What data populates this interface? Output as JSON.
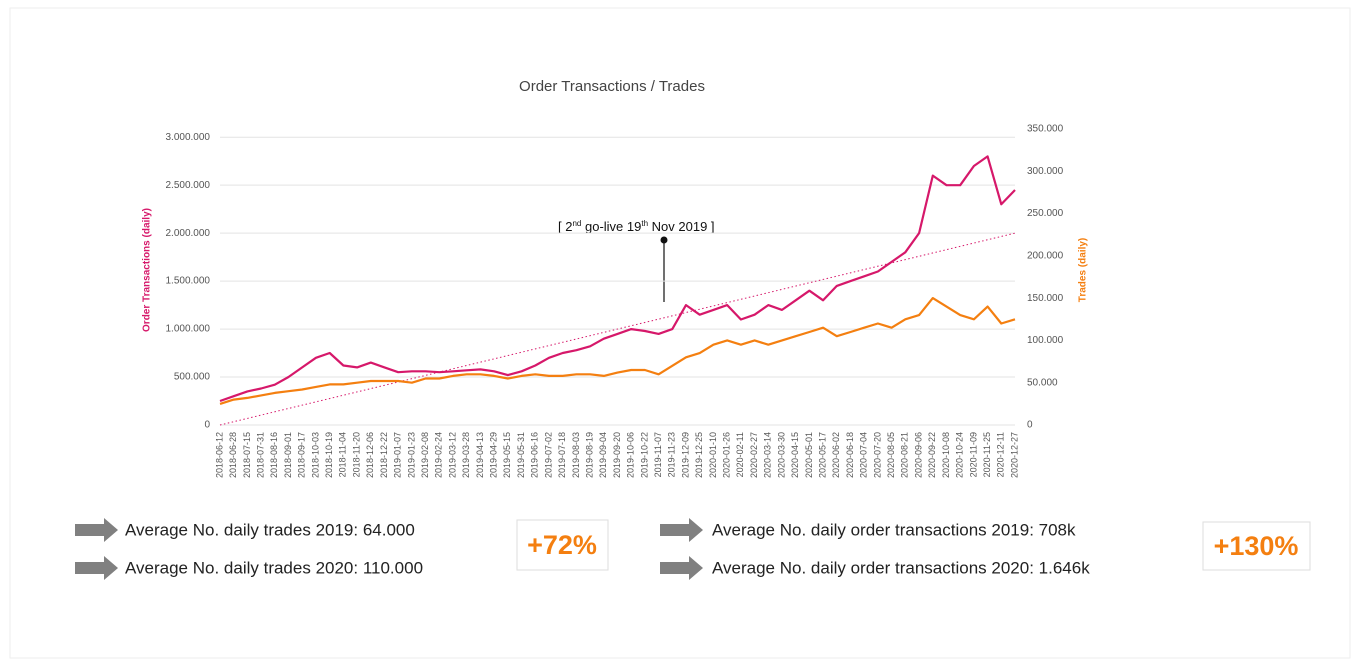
{
  "chart_data": {
    "type": "line",
    "title": "Order Transactions / Trades",
    "y_label": "Order Transactions (daily)",
    "y2_label": "Trades (daily)",
    "annotation": [
      "[ 2",
      "nd",
      " go-live  19",
      "th",
      " Nov  2019 ]"
    ],
    "categories": [
      "2018-06-12",
      "2018-06-28",
      "2018-07-15",
      "2018-07-31",
      "2018-08-16",
      "2018-09-01",
      "2018-09-17",
      "2018-10-03",
      "2018-10-19",
      "2018-11-04",
      "2018-11-20",
      "2018-12-06",
      "2018-12-22",
      "2019-01-07",
      "2019-01-23",
      "2019-02-08",
      "2019-02-24",
      "2019-03-12",
      "2019-03-28",
      "2019-04-13",
      "2019-04-29",
      "2019-05-15",
      "2019-05-31",
      "2019-06-16",
      "2019-07-02",
      "2019-07-18",
      "2019-08-03",
      "2019-08-19",
      "2019-09-04",
      "2019-09-20",
      "2019-10-06",
      "2019-10-22",
      "2019-11-07",
      "2019-11-23",
      "2019-12-09",
      "2019-12-25",
      "2020-01-10",
      "2020-01-26",
      "2020-02-11",
      "2020-02-27",
      "2020-03-14",
      "2020-03-30",
      "2020-04-15",
      "2020-05-01",
      "2020-05-17",
      "2020-06-02",
      "2020-06-18",
      "2020-07-04",
      "2020-07-20",
      "2020-08-05",
      "2020-08-21",
      "2020-09-06",
      "2020-09-22",
      "2020-10-08",
      "2020-10-24",
      "2020-11-09",
      "2020-11-25",
      "2020-12-11",
      "2020-12-27"
    ],
    "series": [
      {
        "name": "Order Transactions (daily)",
        "color": "#d6186a",
        "axis": "y",
        "values": [
          250000,
          300000,
          350000,
          380000,
          420000,
          500000,
          600000,
          700000,
          750000,
          620000,
          600000,
          650000,
          600000,
          550000,
          560000,
          560000,
          550000,
          560000,
          570000,
          580000,
          560000,
          520000,
          560000,
          620000,
          700000,
          750000,
          780000,
          820000,
          900000,
          950000,
          1000000,
          980000,
          950000,
          1000000,
          1250000,
          1150000,
          1200000,
          1250000,
          1100000,
          1150000,
          1250000,
          1200000,
          1300000,
          1400000,
          1300000,
          1450000,
          1500000,
          1550000,
          1600000,
          1700000,
          1800000,
          2000000,
          2600000,
          2500000,
          2500000,
          2700000,
          2800000,
          2300000,
          2450000
        ]
      },
      {
        "name": "Trades (daily)",
        "color": "#f47f10",
        "axis": "y2",
        "values": [
          25000,
          30000,
          32000,
          35000,
          38000,
          40000,
          42000,
          45000,
          48000,
          48000,
          50000,
          52000,
          52000,
          52000,
          50000,
          55000,
          55000,
          58000,
          60000,
          60000,
          58000,
          55000,
          58000,
          60000,
          58000,
          58000,
          60000,
          60000,
          58000,
          62000,
          65000,
          65000,
          60000,
          70000,
          80000,
          85000,
          95000,
          100000,
          95000,
          100000,
          95000,
          100000,
          105000,
          110000,
          115000,
          105000,
          110000,
          115000,
          120000,
          115000,
          125000,
          130000,
          150000,
          140000,
          130000,
          125000,
          140000,
          120000,
          125000
        ]
      }
    ],
    "ylim": [
      0,
      3200000
    ],
    "yticks": [
      0,
      {
        "value": 500000,
        "label": "500.000"
      },
      {
        "value": 1000000,
        "label": "1.000.000"
      },
      {
        "value": 1500000,
        "label": "1.500.000"
      },
      {
        "value": 2000000,
        "label": "2.000.000"
      },
      {
        "value": 2500000,
        "label": "2.500.000"
      },
      {
        "value": 3000000,
        "label": "3.000.000"
      }
    ],
    "y2lim": [
      0,
      363000
    ],
    "y2ticks": [
      0,
      {
        "value": 50000,
        "label": "50.000"
      },
      {
        "value": 100000,
        "label": "100.000"
      },
      {
        "value": 150000,
        "label": "150.000"
      },
      {
        "value": 200000,
        "label": "200.000"
      },
      {
        "value": 250000,
        "label": "250.000"
      },
      {
        "value": 300000,
        "label": "300.000"
      },
      {
        "value": 350000,
        "label": "350.000"
      }
    ],
    "grid": true
  },
  "notes": {
    "trades_2019": "Average No. daily trades 2019: 64.000",
    "trades_2020": "Average No. daily trades 2020: 110.000",
    "trades_change": "+72%",
    "orders_2019": "Average No. daily order transactions 2019: 708k",
    "orders_2020": "Average No. daily order transactions 2020: 1.646k",
    "orders_change": "+130%"
  }
}
